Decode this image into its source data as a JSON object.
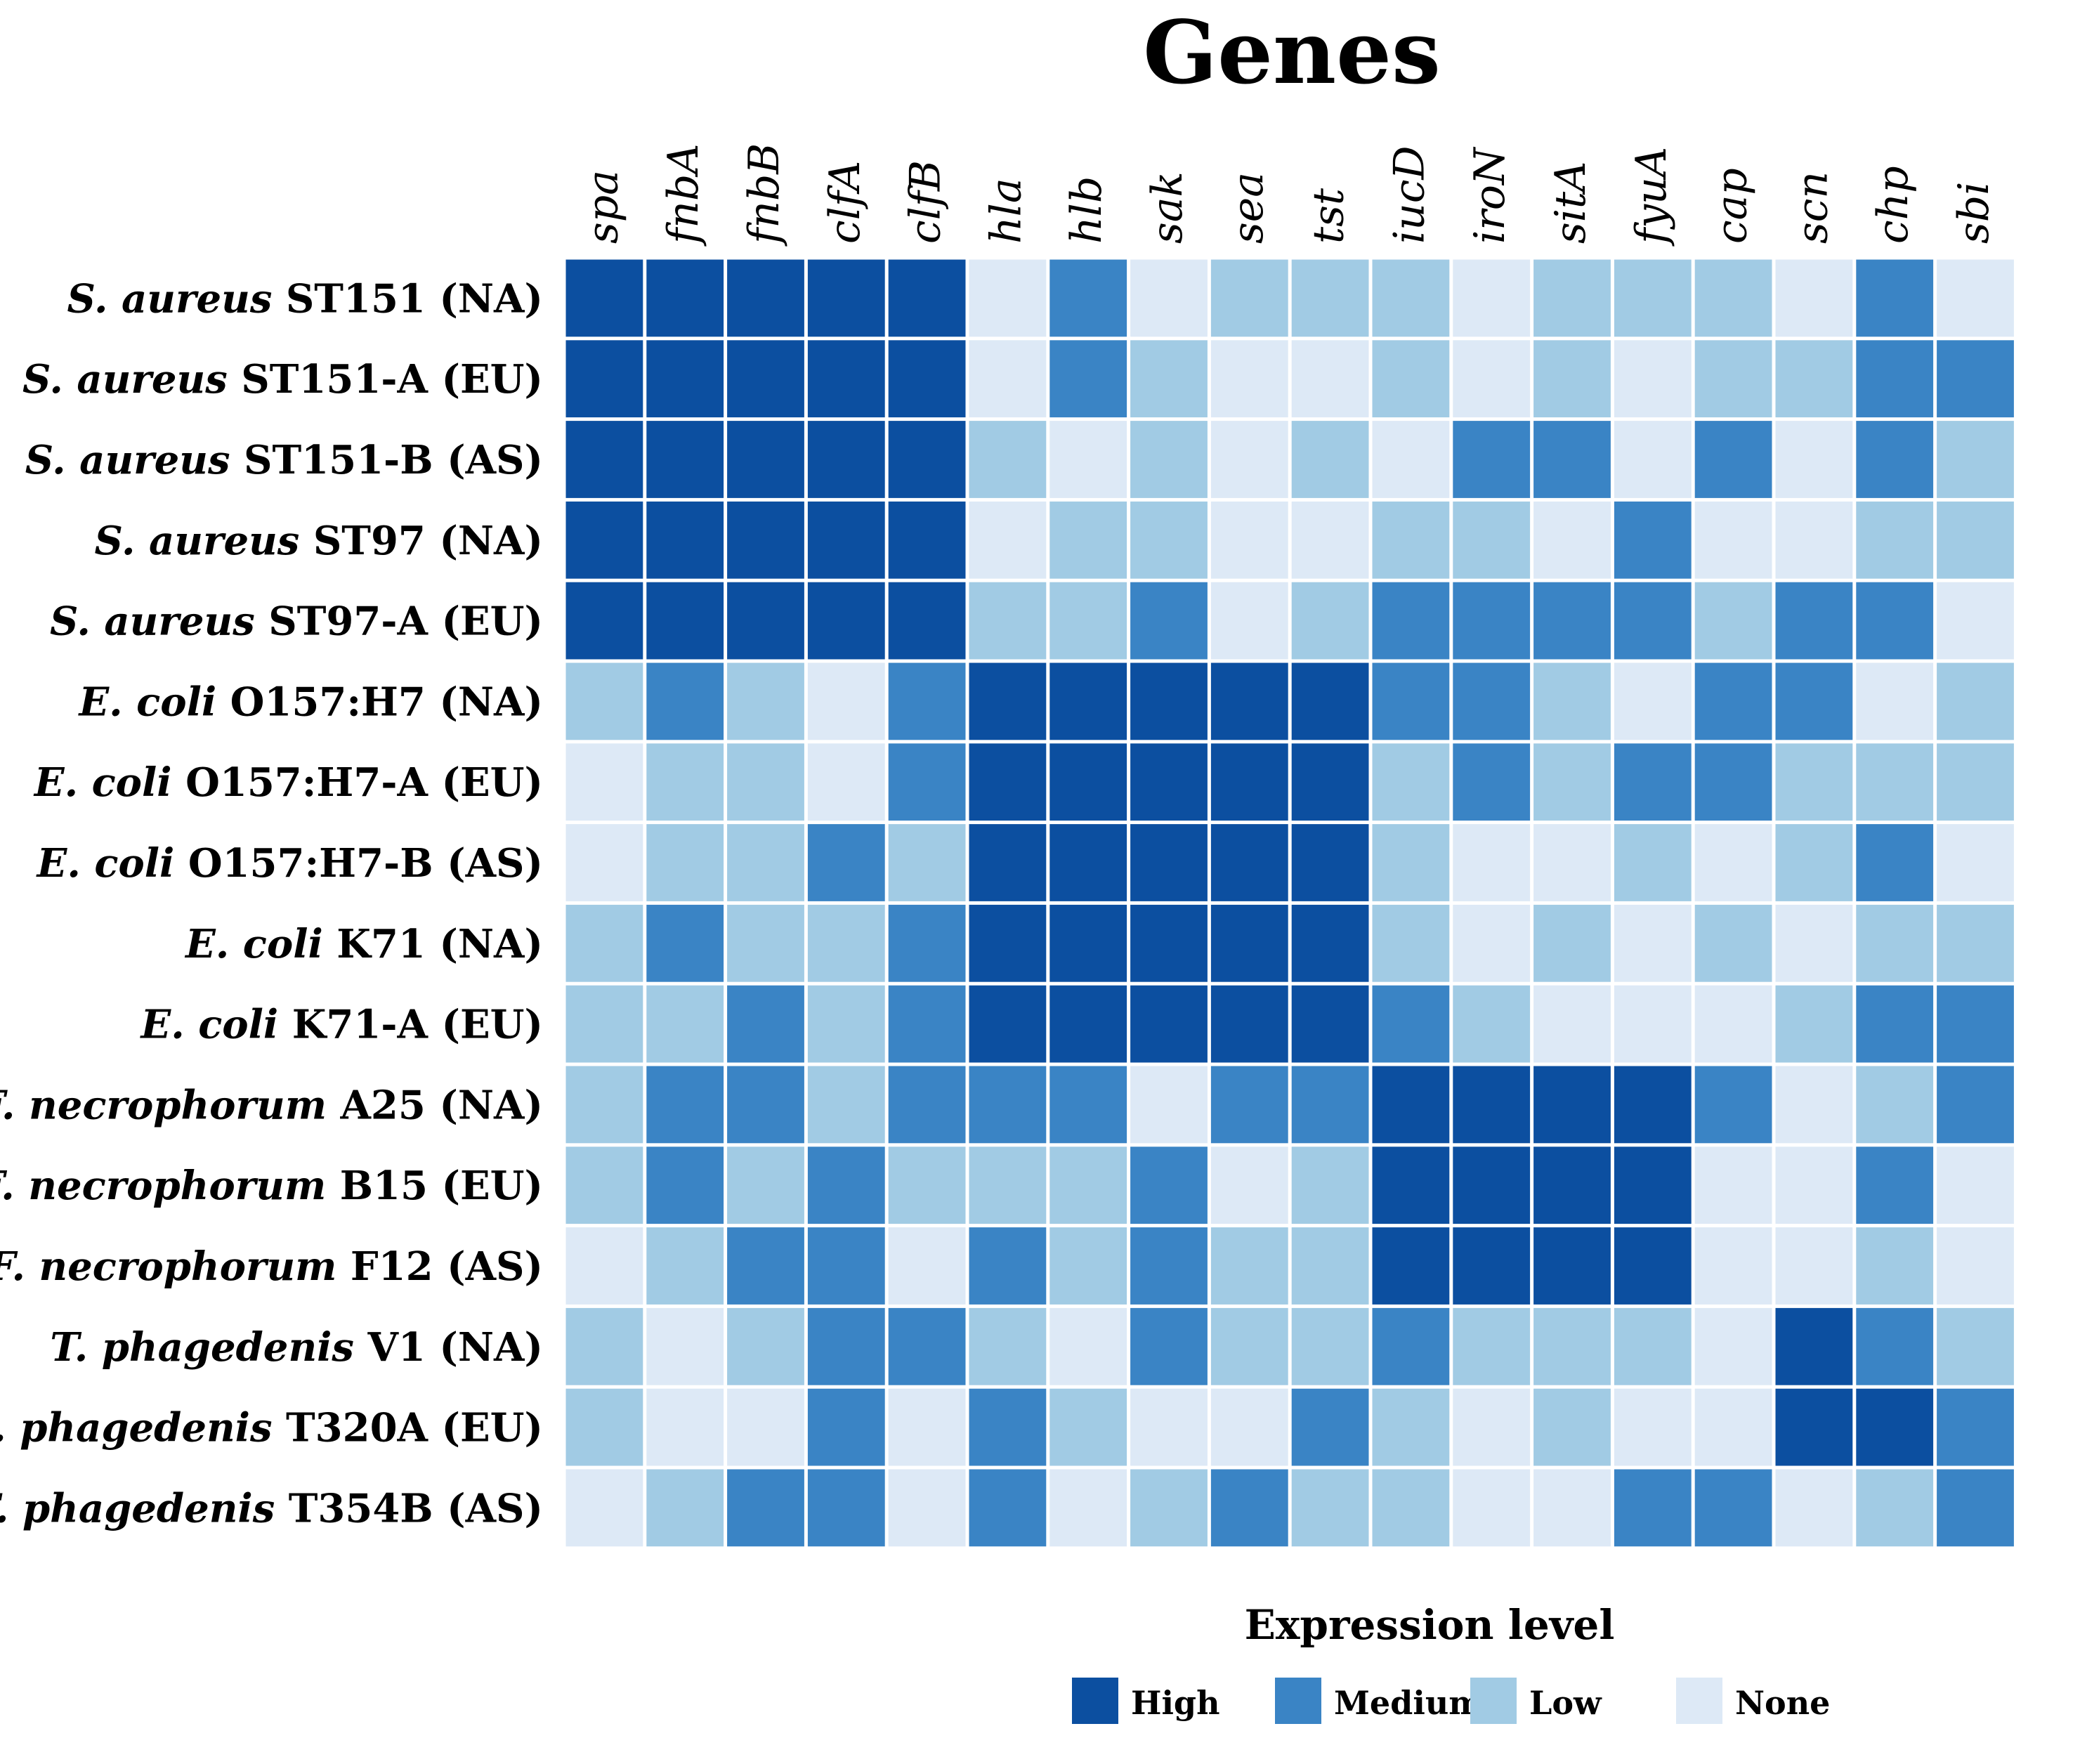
{
  "chart_data": {
    "type": "heatmap",
    "title": "Genes",
    "columns": [
      "spa",
      "fnbA",
      "fnbB",
      "clfA",
      "clfB",
      "hla",
      "hlb",
      "sak",
      "sea",
      "tst",
      "iucD",
      "iroN",
      "sitA",
      "fyuA",
      "cap",
      "scn",
      "chp",
      "sbi"
    ],
    "rows": [
      {
        "species": "S. aureus",
        "strain": "ST151 (NA)"
      },
      {
        "species": "S. aureus",
        "strain": "ST151-A (EU)"
      },
      {
        "species": "S. aureus",
        "strain": "ST151-B (AS)"
      },
      {
        "species": "S. aureus",
        "strain": "ST97 (NA)"
      },
      {
        "species": "S. aureus",
        "strain": "ST97-A (EU)"
      },
      {
        "species": "E. coli",
        "strain": "O157:H7 (NA)"
      },
      {
        "species": "E. coli",
        "strain": "O157:H7-A (EU)"
      },
      {
        "species": "E. coli",
        "strain": "O157:H7-B (AS)"
      },
      {
        "species": "E. coli",
        "strain": "K71 (NA)"
      },
      {
        "species": "E. coli",
        "strain": "K71-A (EU)"
      },
      {
        "species": "F. necrophorum",
        "strain": "A25 (NA)"
      },
      {
        "species": "F. necrophorum",
        "strain": "B15 (EU)"
      },
      {
        "species": "F. necrophorum",
        "strain": "F12 (AS)"
      },
      {
        "species": "T. phagedenis",
        "strain": "V1 (NA)"
      },
      {
        "species": "T. phagedenis",
        "strain": "T320A (EU)"
      },
      {
        "species": "T. phagedenis",
        "strain": "T354B (AS)"
      }
    ],
    "levels": [
      "None",
      "Low",
      "Medium",
      "High"
    ],
    "values": [
      [
        3,
        3,
        3,
        3,
        3,
        0,
        2,
        0,
        1,
        1,
        1,
        0,
        1,
        1,
        1,
        0,
        2,
        0
      ],
      [
        3,
        3,
        3,
        3,
        3,
        0,
        2,
        1,
        0,
        0,
        1,
        0,
        1,
        0,
        1,
        1,
        2,
        2
      ],
      [
        3,
        3,
        3,
        3,
        3,
        1,
        0,
        1,
        0,
        1,
        0,
        2,
        2,
        0,
        2,
        0,
        2,
        1
      ],
      [
        3,
        3,
        3,
        3,
        3,
        0,
        1,
        1,
        0,
        0,
        1,
        1,
        0,
        2,
        0,
        0,
        1,
        1
      ],
      [
        3,
        3,
        3,
        3,
        3,
        1,
        1,
        2,
        0,
        1,
        2,
        2,
        2,
        2,
        1,
        2,
        2,
        0
      ],
      [
        1,
        2,
        1,
        0,
        2,
        3,
        3,
        3,
        3,
        3,
        2,
        2,
        1,
        0,
        2,
        2,
        0,
        1
      ],
      [
        0,
        1,
        1,
        0,
        2,
        3,
        3,
        3,
        3,
        3,
        1,
        2,
        1,
        2,
        2,
        1,
        1,
        1
      ],
      [
        0,
        1,
        1,
        2,
        1,
        3,
        3,
        3,
        3,
        3,
        1,
        0,
        0,
        1,
        0,
        1,
        2,
        0
      ],
      [
        1,
        2,
        1,
        1,
        2,
        3,
        3,
        3,
        3,
        3,
        1,
        0,
        1,
        0,
        1,
        0,
        1,
        1
      ],
      [
        1,
        1,
        2,
        1,
        2,
        3,
        3,
        3,
        3,
        3,
        2,
        1,
        0,
        0,
        0,
        1,
        2,
        2
      ],
      [
        1,
        2,
        2,
        1,
        2,
        2,
        2,
        0,
        2,
        2,
        3,
        3,
        3,
        3,
        2,
        0,
        1,
        2
      ],
      [
        1,
        2,
        1,
        2,
        1,
        1,
        1,
        2,
        0,
        1,
        3,
        3,
        3,
        3,
        0,
        0,
        2,
        0
      ],
      [
        0,
        1,
        2,
        2,
        0,
        2,
        1,
        2,
        1,
        1,
        3,
        3,
        3,
        3,
        0,
        0,
        1,
        0
      ],
      [
        1,
        0,
        1,
        2,
        2,
        1,
        0,
        2,
        1,
        1,
        2,
        1,
        1,
        1,
        0,
        3,
        2,
        1
      ],
      [
        1,
        0,
        0,
        2,
        0,
        2,
        1,
        0,
        0,
        2,
        1,
        0,
        1,
        0,
        0,
        3,
        3,
        2
      ],
      [
        0,
        1,
        2,
        2,
        0,
        2,
        0,
        1,
        2,
        1,
        1,
        0,
        0,
        2,
        2,
        0,
        1,
        2
      ]
    ],
    "legend": {
      "title": "Expression level",
      "items": [
        {
          "label": "High",
          "color": "#0c4fa0"
        },
        {
          "label": "Medium",
          "color": "#3a84c5"
        },
        {
          "label": "Low",
          "color": "#a1cbe4"
        },
        {
          "label": "None",
          "color": "#dde9f6"
        }
      ]
    },
    "level_colors": {
      "None": "#dde9f6",
      "Low": "#a1cbe4",
      "Medium": "#3a84c5",
      "High": "#0c4fa0"
    }
  }
}
